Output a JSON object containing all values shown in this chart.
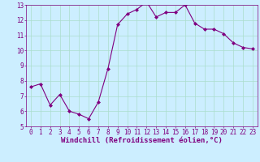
{
  "x": [
    0,
    1,
    2,
    3,
    4,
    5,
    6,
    7,
    8,
    9,
    10,
    11,
    12,
    13,
    14,
    15,
    16,
    17,
    18,
    19,
    20,
    21,
    22,
    23
  ],
  "y": [
    7.6,
    7.8,
    6.4,
    7.1,
    6.0,
    5.8,
    5.5,
    6.6,
    8.8,
    11.7,
    12.4,
    12.7,
    13.2,
    12.2,
    12.5,
    12.5,
    13.0,
    11.8,
    11.4,
    11.4,
    11.1,
    10.5,
    10.2,
    10.1
  ],
  "line_color": "#800080",
  "marker": "D",
  "marker_size": 2,
  "bg_color": "#cceeff",
  "grid_color": "#aaddcc",
  "xlabel": "Windchill (Refroidissement éolien,°C)",
  "xlim": [
    -0.5,
    23.5
  ],
  "ylim": [
    5,
    13
  ],
  "yticks": [
    5,
    6,
    7,
    8,
    9,
    10,
    11,
    12,
    13
  ],
  "xticks": [
    0,
    1,
    2,
    3,
    4,
    5,
    6,
    7,
    8,
    9,
    10,
    11,
    12,
    13,
    14,
    15,
    16,
    17,
    18,
    19,
    20,
    21,
    22,
    23
  ],
  "tick_color": "#800080",
  "label_color": "#800080",
  "tick_fontsize": 5.5,
  "xlabel_fontsize": 6.5
}
